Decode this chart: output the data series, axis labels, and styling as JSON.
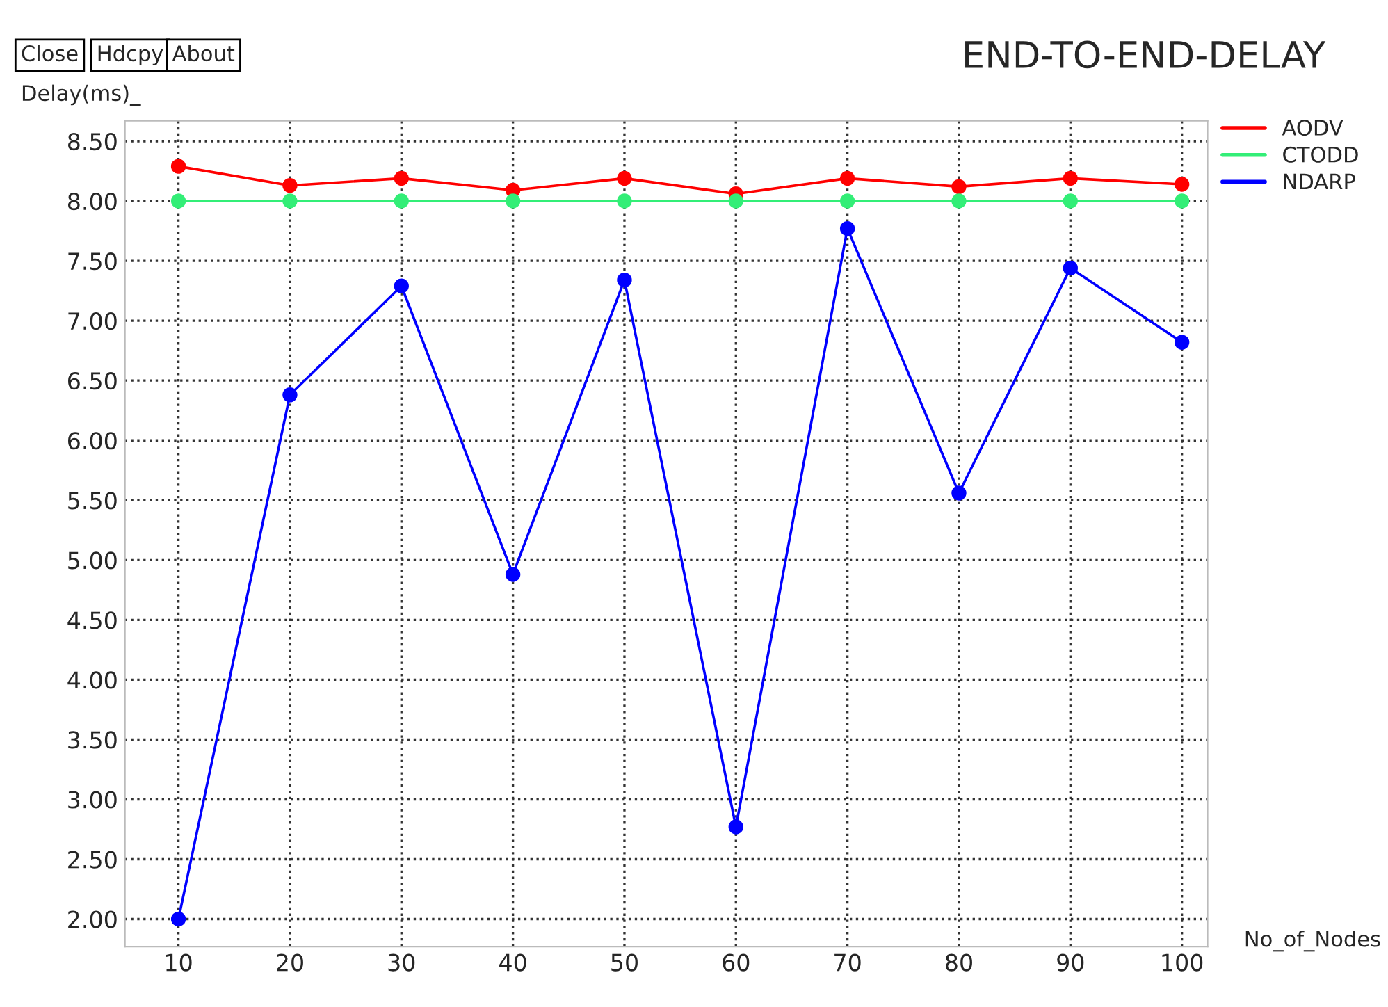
{
  "chart_data": {
    "type": "line",
    "title": "END-TO-END-DELAY",
    "xlabel": "No_of_Nodes",
    "ylabel": "Delay(ms)_",
    "annotations": [
      "Close",
      "Hdcpy",
      "About"
    ],
    "x": [
      10,
      20,
      30,
      40,
      50,
      60,
      70,
      80,
      90,
      100
    ],
    "series": [
      {
        "name": "AODV",
        "color": "#ff0000",
        "values": [
          8.29,
          8.13,
          8.19,
          8.09,
          8.19,
          8.06,
          8.19,
          8.12,
          8.19,
          8.14
        ]
      },
      {
        "name": "CTODD",
        "color": "#33ee77",
        "values": [
          8.0,
          8.0,
          8.0,
          8.0,
          8.0,
          8.0,
          8.0,
          8.0,
          8.0,
          8.0
        ]
      },
      {
        "name": "NDARP",
        "color": "#0000ff",
        "values": [
          2.0,
          6.38,
          7.29,
          4.88,
          7.34,
          2.77,
          7.77,
          5.56,
          7.44,
          6.82
        ]
      }
    ],
    "xlim": [
      5.2,
      102.3
    ],
    "ylim": [
      1.77,
      8.67
    ],
    "xticks": [
      10,
      20,
      30,
      40,
      50,
      60,
      70,
      80,
      90,
      100
    ],
    "yticks": [
      {
        "value": 2,
        "label": "2.00"
      },
      {
        "value": 2.5,
        "label": "2.50"
      },
      {
        "value": 3,
        "label": "3.00"
      },
      {
        "value": 3.5,
        "label": "3.50"
      },
      {
        "value": 4,
        "label": "4.00"
      },
      {
        "value": 4.5,
        "label": "4.50"
      },
      {
        "value": 5,
        "label": "5.00"
      },
      {
        "value": 5.5,
        "label": "5.50"
      },
      {
        "value": 6,
        "label": "6.00"
      },
      {
        "value": 6.5,
        "label": "6.50"
      },
      {
        "value": 7,
        "label": "7.00"
      },
      {
        "value": 7.5,
        "label": "7.50"
      },
      {
        "value": 8,
        "label": "8.00"
      },
      {
        "value": 8.5,
        "label": "8.50"
      }
    ],
    "grid": true,
    "legend": "top right",
    "marker": "circle",
    "line_style": "solid"
  }
}
